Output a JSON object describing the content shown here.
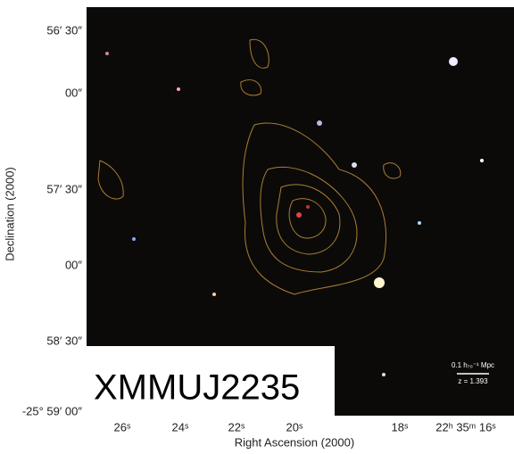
{
  "figure": {
    "label": "XMMUJ2235",
    "x_axis_label": "Right Ascension (2000)",
    "y_axis_label": "Declination (2000)",
    "x_ticks": [
      "26ˢ",
      "24ˢ",
      "22ˢ",
      "20ˢ",
      "18ˢ",
      "22ʰ 35ᵐ 16ˢ"
    ],
    "y_ticks": [
      "56′ 30″",
      "00″",
      "57′ 30″",
      "00″",
      "58′ 30″",
      "-25° 59′ 00″"
    ],
    "scale_bar": {
      "length": "0.1 h₇₀⁻¹ Mpc",
      "redshift": "z = 1.393"
    }
  }
}
